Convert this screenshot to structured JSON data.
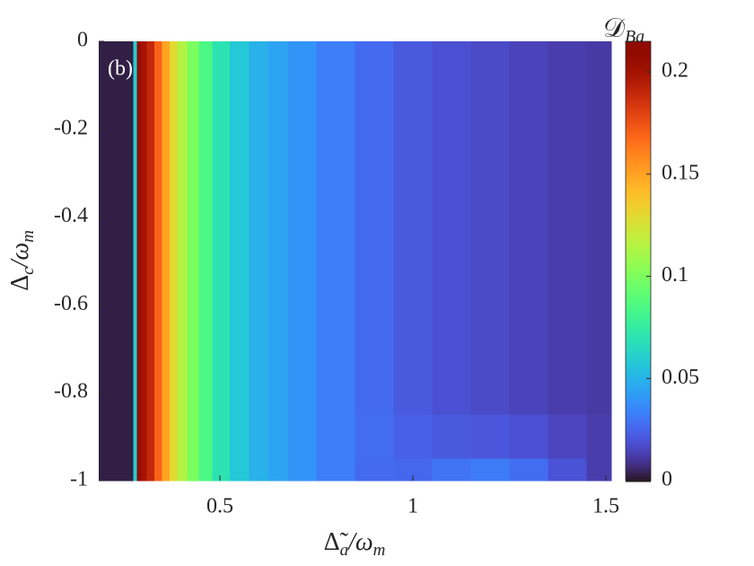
{
  "chart_data": {
    "type": "heatmap",
    "panel_label": "(b)",
    "xlabel": [
      "Δ̃",
      "a",
      "/ω",
      "m"
    ],
    "ylabel": [
      "Δ",
      "c",
      "/ω",
      "m"
    ],
    "colorbar_label": [
      "𝒟",
      "Ba"
    ],
    "colormap": "turbo",
    "xlim": [
      0.186,
      1.514
    ],
    "ylim": [
      -1,
      0
    ],
    "xticks": [
      0.5,
      1,
      1.5
    ],
    "yticks": [
      0,
      -0.2,
      -0.4,
      -0.6,
      -0.8,
      -1
    ],
    "clim": [
      0,
      0.215
    ],
    "cbticks": [
      0,
      0.05,
      0.1,
      0.15,
      0.2
    ],
    "x": [
      0.19,
      0.22,
      0.25,
      0.27,
      0.28,
      0.29,
      0.3,
      0.32,
      0.34,
      0.36,
      0.38,
      0.4,
      0.43,
      0.46,
      0.5,
      0.55,
      0.6,
      0.65,
      0.7,
      0.8,
      0.9,
      1.0,
      1.1,
      1.2,
      1.3,
      1.4,
      1.5
    ],
    "y": [
      0,
      -0.2,
      -0.4,
      -0.6,
      -0.8,
      -0.9,
      -1
    ],
    "z": [
      [
        0.003,
        0.003,
        0.003,
        0.003,
        0.06,
        0.21,
        0.2,
        0.19,
        0.17,
        0.15,
        0.13,
        0.115,
        0.1,
        0.085,
        0.07,
        0.058,
        0.05,
        0.045,
        0.04,
        0.033,
        0.027,
        0.022,
        0.019,
        0.017,
        0.015,
        0.013,
        0.012
      ],
      [
        0.003,
        0.003,
        0.003,
        0.003,
        0.06,
        0.21,
        0.2,
        0.19,
        0.17,
        0.15,
        0.13,
        0.115,
        0.1,
        0.085,
        0.07,
        0.058,
        0.05,
        0.045,
        0.04,
        0.033,
        0.027,
        0.022,
        0.019,
        0.017,
        0.015,
        0.013,
        0.012
      ],
      [
        0.003,
        0.003,
        0.003,
        0.003,
        0.06,
        0.21,
        0.2,
        0.19,
        0.17,
        0.15,
        0.13,
        0.115,
        0.1,
        0.085,
        0.07,
        0.058,
        0.05,
        0.045,
        0.04,
        0.033,
        0.027,
        0.022,
        0.019,
        0.017,
        0.015,
        0.013,
        0.012
      ],
      [
        0.003,
        0.003,
        0.003,
        0.003,
        0.06,
        0.21,
        0.2,
        0.19,
        0.17,
        0.15,
        0.13,
        0.115,
        0.1,
        0.085,
        0.07,
        0.058,
        0.05,
        0.045,
        0.04,
        0.033,
        0.027,
        0.022,
        0.019,
        0.017,
        0.015,
        0.013,
        0.012
      ],
      [
        0.003,
        0.003,
        0.003,
        0.003,
        0.06,
        0.21,
        0.2,
        0.19,
        0.17,
        0.15,
        0.13,
        0.115,
        0.1,
        0.085,
        0.07,
        0.058,
        0.05,
        0.045,
        0.04,
        0.033,
        0.027,
        0.022,
        0.019,
        0.017,
        0.015,
        0.013,
        0.012
      ],
      [
        0.003,
        0.003,
        0.003,
        0.003,
        0.06,
        0.21,
        0.2,
        0.19,
        0.17,
        0.15,
        0.13,
        0.115,
        0.1,
        0.085,
        0.07,
        0.058,
        0.05,
        0.045,
        0.04,
        0.033,
        0.028,
        0.024,
        0.022,
        0.021,
        0.019,
        0.016,
        0.013
      ],
      [
        0.003,
        0.003,
        0.003,
        0.003,
        0.06,
        0.21,
        0.2,
        0.19,
        0.17,
        0.15,
        0.13,
        0.115,
        0.1,
        0.085,
        0.07,
        0.058,
        0.05,
        0.045,
        0.04,
        0.033,
        0.027,
        0.026,
        0.03,
        0.032,
        0.028,
        0.02,
        0.013
      ]
    ]
  }
}
